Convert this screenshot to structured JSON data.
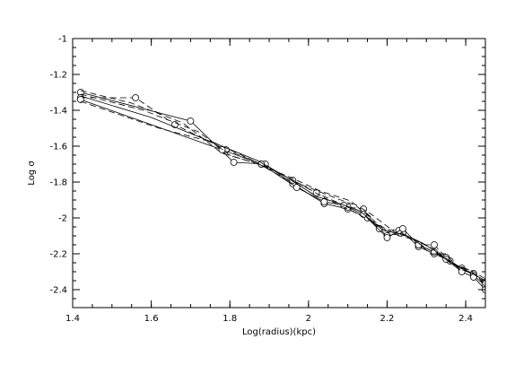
{
  "chart_data": {
    "type": "line",
    "title": "",
    "xlabel": "Log(radius)(kpc)",
    "ylabel": "Log σ",
    "xlim": [
      1.4,
      2.45
    ],
    "ylim": [
      -2.5,
      -1.0
    ],
    "x_ticks": [
      1.4,
      1.6,
      1.8,
      2.0,
      2.2,
      2.4
    ],
    "x_tick_labels": [
      "1.4",
      "1.6",
      "1.8",
      "2",
      "2.2",
      "2.4"
    ],
    "y_ticks": [
      -1.0,
      -1.2,
      -1.4,
      -1.6,
      -1.8,
      -2.0,
      -2.2,
      -2.4
    ],
    "y_tick_labels": [
      "-1",
      "-1.2",
      "-1.4",
      "-1.6",
      "-1.8",
      "-2",
      "-2.2",
      "-2.4"
    ],
    "grid": false,
    "legend": "none",
    "series": [
      {
        "style": "solid",
        "marker": true,
        "points": [
          [
            1.42,
            -1.3
          ],
          [
            1.7,
            -1.46
          ],
          [
            1.81,
            -1.69
          ],
          [
            1.89,
            -1.7
          ],
          [
            1.96,
            -1.81
          ],
          [
            2.04,
            -1.92
          ],
          [
            2.1,
            -1.95
          ],
          [
            2.15,
            -2.0
          ],
          [
            2.2,
            -2.1
          ],
          [
            2.24,
            -2.08
          ],
          [
            2.28,
            -2.16
          ],
          [
            2.32,
            -2.2
          ],
          [
            2.36,
            -2.24
          ],
          [
            2.39,
            -2.28
          ],
          [
            2.42,
            -2.32
          ],
          [
            2.45,
            -2.38
          ]
        ]
      },
      {
        "style": "dashed",
        "marker": true,
        "points": [
          [
            1.42,
            -1.33
          ],
          [
            1.56,
            -1.33
          ],
          [
            1.66,
            -1.48
          ],
          [
            1.79,
            -1.62
          ],
          [
            1.88,
            -1.7
          ],
          [
            1.96,
            -1.79
          ],
          [
            2.02,
            -1.86
          ],
          [
            2.1,
            -1.94
          ],
          [
            2.14,
            -1.95
          ],
          [
            2.18,
            -2.06
          ],
          [
            2.23,
            -2.07
          ],
          [
            2.28,
            -2.15
          ],
          [
            2.32,
            -2.15
          ],
          [
            2.35,
            -2.22
          ],
          [
            2.39,
            -2.29
          ],
          [
            2.42,
            -2.31
          ],
          [
            2.45,
            -2.36
          ]
        ]
      },
      {
        "style": "solid",
        "marker": true,
        "points": [
          [
            1.42,
            -1.34
          ],
          [
            1.78,
            -1.62
          ],
          [
            1.88,
            -1.7
          ],
          [
            1.97,
            -1.83
          ],
          [
            2.04,
            -1.91
          ],
          [
            2.09,
            -1.93
          ],
          [
            2.14,
            -1.98
          ],
          [
            2.2,
            -2.11
          ],
          [
            2.24,
            -2.06
          ],
          [
            2.28,
            -2.15
          ],
          [
            2.32,
            -2.19
          ],
          [
            2.35,
            -2.23
          ],
          [
            2.39,
            -2.3
          ],
          [
            2.42,
            -2.33
          ],
          [
            2.45,
            -2.4
          ]
        ]
      },
      {
        "style": "dashed",
        "marker": false,
        "points": [
          [
            1.42,
            -1.29
          ],
          [
            1.55,
            -1.36
          ],
          [
            1.68,
            -1.47
          ],
          [
            1.78,
            -1.64
          ],
          [
            1.86,
            -1.69
          ],
          [
            1.95,
            -1.77
          ],
          [
            2.03,
            -1.85
          ],
          [
            2.1,
            -1.9
          ],
          [
            2.16,
            -1.98
          ],
          [
            2.22,
            -2.08
          ],
          [
            2.26,
            -2.11
          ],
          [
            2.3,
            -2.17
          ],
          [
            2.34,
            -2.21
          ],
          [
            2.38,
            -2.27
          ],
          [
            2.42,
            -2.3
          ],
          [
            2.45,
            -2.34
          ]
        ]
      },
      {
        "style": "dashed",
        "marker": false,
        "points": [
          [
            1.42,
            -1.31
          ],
          [
            1.58,
            -1.4
          ],
          [
            1.72,
            -1.52
          ],
          [
            1.8,
            -1.65
          ],
          [
            1.9,
            -1.72
          ],
          [
            1.97,
            -1.8
          ],
          [
            2.05,
            -1.9
          ],
          [
            2.11,
            -1.96
          ],
          [
            2.17,
            -2.03
          ],
          [
            2.21,
            -2.09
          ],
          [
            2.25,
            -2.1
          ],
          [
            2.29,
            -2.14
          ],
          [
            2.33,
            -2.19
          ],
          [
            2.37,
            -2.26
          ],
          [
            2.41,
            -2.29
          ],
          [
            2.45,
            -2.37
          ]
        ]
      },
      {
        "style": "solid",
        "marker": false,
        "points": [
          [
            1.42,
            -1.32
          ],
          [
            1.6,
            -1.44
          ],
          [
            1.78,
            -1.6
          ],
          [
            1.87,
            -1.68
          ],
          [
            1.95,
            -1.78
          ],
          [
            2.02,
            -1.88
          ],
          [
            2.08,
            -1.92
          ],
          [
            2.13,
            -1.96
          ],
          [
            2.19,
            -2.07
          ],
          [
            2.24,
            -2.09
          ],
          [
            2.28,
            -2.13
          ],
          [
            2.32,
            -2.18
          ],
          [
            2.36,
            -2.25
          ],
          [
            2.4,
            -2.29
          ],
          [
            2.45,
            -2.35
          ]
        ]
      },
      {
        "style": "dashed",
        "marker": false,
        "points": [
          [
            1.42,
            -1.35
          ],
          [
            1.62,
            -1.5
          ],
          [
            1.76,
            -1.58
          ],
          [
            1.85,
            -1.67
          ],
          [
            1.94,
            -1.78
          ],
          [
            2.0,
            -1.83
          ],
          [
            2.07,
            -1.89
          ],
          [
            2.12,
            -1.93
          ],
          [
            2.18,
            -2.04
          ],
          [
            2.23,
            -2.1
          ],
          [
            2.27,
            -2.12
          ],
          [
            2.31,
            -2.2
          ],
          [
            2.35,
            -2.2
          ],
          [
            2.38,
            -2.28
          ],
          [
            2.43,
            -2.32
          ],
          [
            2.45,
            -2.39
          ]
        ]
      }
    ]
  }
}
